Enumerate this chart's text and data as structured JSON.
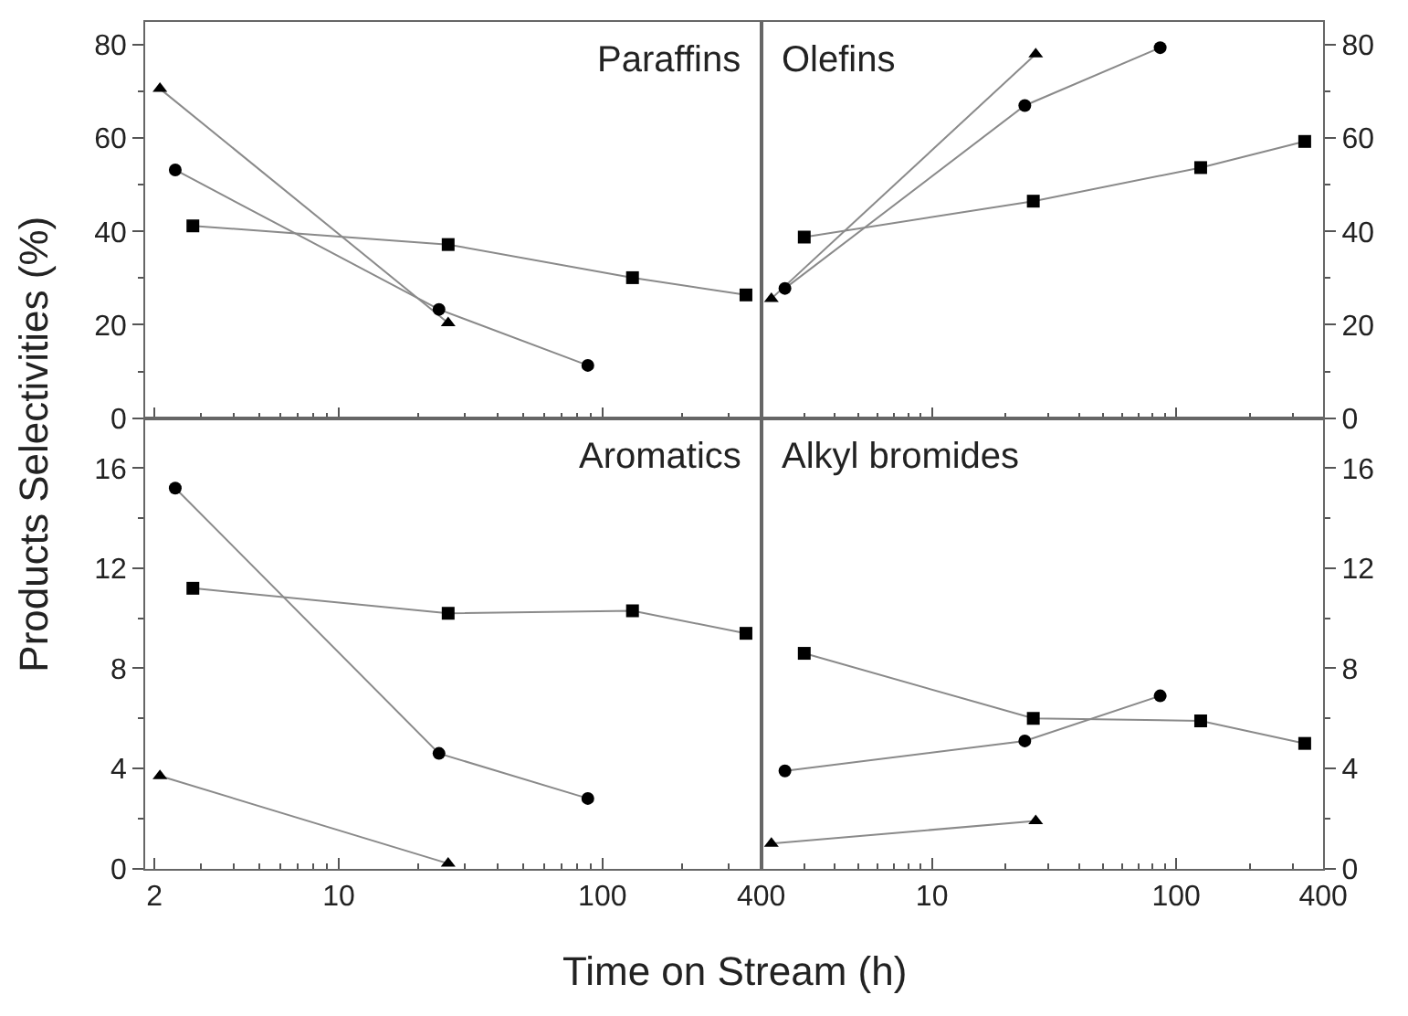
{
  "chart_data": [
    {
      "type": "line",
      "title": "Paraffins",
      "ylabel": "Products Selectivities (%)",
      "xlim": [
        1.85,
        400
      ],
      "xticks": [
        2,
        10,
        100,
        400
      ],
      "ylim": [
        0,
        85
      ],
      "yticks": [
        0,
        20,
        40,
        60,
        80
      ],
      "log": "x",
      "tick_labels": "y",
      "series": [
        {
          "color": "#000000",
          "marker": "triangle",
          "x": [
            2.1,
            26
          ],
          "values": [
            70.6,
            20.4
          ]
        },
        {
          "color": "#000000",
          "marker": "circle",
          "x": [
            2.4,
            24,
            88
          ],
          "values": [
            53.2,
            23.3,
            11.3
          ]
        },
        {
          "color": "#000000",
          "marker": "square",
          "x": [
            2.8,
            26,
            130,
            350
          ],
          "values": [
            41.2,
            37.2,
            30.1,
            26.4
          ]
        }
      ]
    },
    {
      "type": "line",
      "title": "Olefins",
      "xlim": [
        2,
        400
      ],
      "xticks": [
        10,
        100,
        400
      ],
      "ylim": [
        0,
        85
      ],
      "yticks": [
        0,
        20,
        40,
        60,
        80
      ],
      "log": "x",
      "tick_labels": "y",
      "series": [
        {
          "color": "#000000",
          "marker": "triangle",
          "x": [
            2.2,
            26.6
          ],
          "values": [
            25.6,
            78.0
          ]
        },
        {
          "color": "#000000",
          "marker": "circle",
          "x": [
            2.5,
            24,
            86
          ],
          "values": [
            27.8,
            67.0,
            79.4
          ]
        },
        {
          "color": "#000000",
          "marker": "square",
          "x": [
            3.0,
            26,
            126,
            336
          ],
          "values": [
            38.8,
            46.5,
            53.7,
            59.3
          ]
        }
      ]
    },
    {
      "type": "line",
      "title": "Aromatics",
      "xlabel": "Time on Stream (h)",
      "xlim": [
        1.85,
        400
      ],
      "xticks": [
        2,
        10,
        100,
        400
      ],
      "ylim": [
        0,
        18
      ],
      "yticks": [
        0,
        4,
        8,
        12,
        16
      ],
      "log": "x",
      "series": [
        {
          "color": "#000000",
          "marker": "triangle",
          "x": [
            2.1,
            26
          ],
          "values": [
            3.7,
            0.2
          ]
        },
        {
          "color": "#000000",
          "marker": "circle",
          "x": [
            2.4,
            24,
            88
          ],
          "values": [
            15.2,
            4.6,
            2.8
          ]
        },
        {
          "color": "#000000",
          "marker": "square",
          "x": [
            2.8,
            26,
            130,
            350
          ],
          "values": [
            11.2,
            10.2,
            10.3,
            9.4
          ]
        }
      ]
    },
    {
      "type": "line",
      "title": "Alkyl bromides",
      "xlim": [
        2,
        400
      ],
      "xticks": [
        10,
        100,
        400
      ],
      "ylim": [
        0,
        18
      ],
      "yticks": [
        0,
        4,
        8,
        12,
        16
      ],
      "log": "x",
      "series": [
        {
          "color": "#000000",
          "marker": "triangle",
          "x": [
            2.2,
            26.6
          ],
          "values": [
            1.0,
            1.9
          ]
        },
        {
          "color": "#000000",
          "marker": "circle",
          "x": [
            2.5,
            24,
            86
          ],
          "values": [
            3.9,
            5.1,
            6.9
          ]
        },
        {
          "color": "#000000",
          "marker": "square",
          "x": [
            3.0,
            26,
            126,
            336
          ],
          "values": [
            8.6,
            6.0,
            5.9,
            5.0
          ]
        }
      ]
    }
  ]
}
